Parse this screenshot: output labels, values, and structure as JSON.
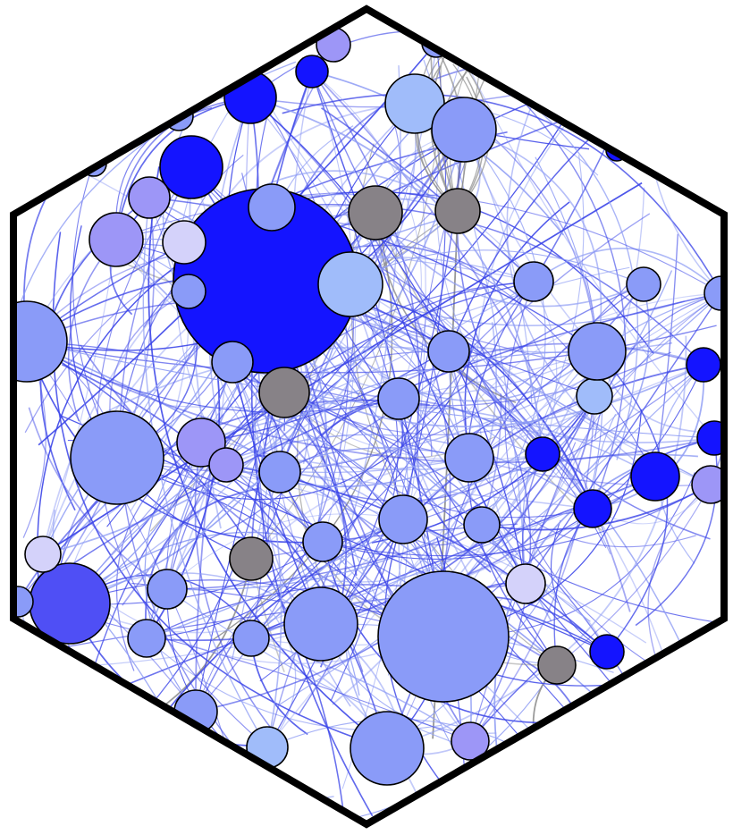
{
  "figure": {
    "frame_shape": "hexagon",
    "frame_color": "#000000",
    "background": "#ffffff"
  },
  "palette": {
    "dark_blue": "#1414ff",
    "royal_blue": "#4f4ff5",
    "periwinkle": "#8a9bf8",
    "light_blue": "#a0bcfa",
    "lavender": "#9d96f7",
    "pale_lavender": "#d4d2fa",
    "gray": "#878287",
    "edge_blue": "#3a44e8",
    "edge_light": "#8e9cf4",
    "edge_gray": "#8a8a8a"
  },
  "nodes": [
    {
      "id": "n1",
      "color": "dark_blue"
    },
    {
      "id": "n2",
      "color": "periwinkle"
    },
    {
      "id": "n3",
      "color": "light_blue"
    },
    {
      "id": "n4",
      "color": "periwinkle"
    },
    {
      "id": "n5",
      "color": "periwinkle"
    },
    {
      "id": "n6",
      "color": "periwinkle"
    },
    {
      "id": "n7",
      "color": "periwinkle"
    },
    {
      "id": "n8",
      "color": "royal_blue"
    },
    {
      "id": "n9",
      "color": "dark_blue"
    },
    {
      "id": "n10",
      "color": "lavender"
    },
    {
      "id": "n11",
      "color": "pale_lavender"
    },
    {
      "id": "n12",
      "color": "periwinkle"
    },
    {
      "id": "n13",
      "color": "light_blue"
    },
    {
      "id": "n14",
      "color": "light_blue"
    },
    {
      "id": "n15",
      "color": "gray"
    },
    {
      "id": "n16",
      "color": "gray"
    },
    {
      "id": "n17",
      "color": "gray"
    },
    {
      "id": "n18",
      "color": "gray"
    },
    {
      "id": "n19",
      "color": "gray"
    },
    {
      "id": "n20",
      "color": "periwinkle"
    },
    {
      "id": "n21",
      "color": "periwinkle"
    },
    {
      "id": "n22",
      "color": "lavender"
    },
    {
      "id": "n23",
      "color": "lavender"
    },
    {
      "id": "n24",
      "color": "periwinkle"
    },
    {
      "id": "n25",
      "color": "periwinkle"
    },
    {
      "id": "n26",
      "color": "periwinkle"
    },
    {
      "id": "n27",
      "color": "periwinkle"
    },
    {
      "id": "n28",
      "color": "dark_blue"
    },
    {
      "id": "n29",
      "color": "dark_blue"
    },
    {
      "id": "n30",
      "color": "dark_blue"
    },
    {
      "id": "n31",
      "color": "lavender"
    },
    {
      "id": "n32",
      "color": "periwinkle"
    },
    {
      "id": "n33",
      "color": "periwinkle"
    },
    {
      "id": "n34",
      "color": "periwinkle"
    },
    {
      "id": "n35",
      "color": "periwinkle"
    },
    {
      "id": "n36",
      "color": "periwinkle"
    },
    {
      "id": "n37",
      "color": "periwinkle"
    },
    {
      "id": "n38",
      "color": "periwinkle"
    },
    {
      "id": "n39",
      "color": "periwinkle"
    },
    {
      "id": "n40",
      "color": "light_blue"
    },
    {
      "id": "n41",
      "color": "periwinkle"
    },
    {
      "id": "n42",
      "color": "lavender"
    },
    {
      "id": "n43",
      "color": "pale_lavender"
    },
    {
      "id": "n44",
      "color": "periwinkle"
    },
    {
      "id": "n45",
      "color": "dark_blue"
    },
    {
      "id": "n46",
      "color": "dark_blue"
    },
    {
      "id": "n47",
      "color": "dark_blue"
    },
    {
      "id": "n48",
      "color": "dark_blue"
    },
    {
      "id": "n49",
      "color": "dark_blue"
    },
    {
      "id": "n50",
      "color": "lavender"
    },
    {
      "id": "n51",
      "color": "periwinkle"
    },
    {
      "id": "n52",
      "color": "pale_lavender"
    },
    {
      "id": "n53",
      "color": "periwinkle"
    },
    {
      "id": "n54",
      "color": "periwinkle"
    },
    {
      "id": "n55",
      "color": "periwinkle"
    }
  ]
}
